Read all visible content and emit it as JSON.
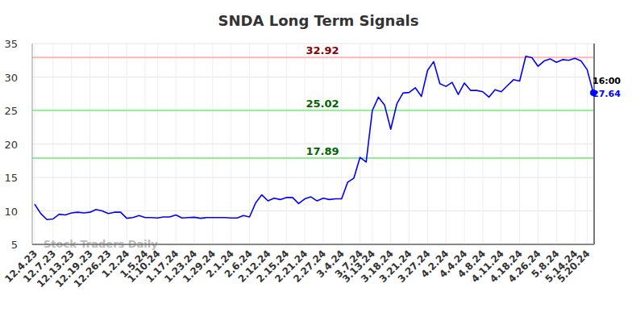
{
  "chart_data": {
    "type": "line",
    "title": "SNDA Long Term Signals",
    "categories": [
      "12.4.23",
      null,
      null,
      "12.7.23",
      null,
      null,
      "12.13.23",
      null,
      null,
      "12.19.23",
      null,
      null,
      "12.26.23",
      null,
      null,
      "1.2.24",
      null,
      null,
      "1.5.24",
      null,
      "1.10.24",
      null,
      null,
      "1.17.24",
      null,
      null,
      "1.23.24",
      null,
      null,
      "1.29.24",
      null,
      null,
      "2.1.24",
      null,
      null,
      "2.6.24",
      null,
      null,
      "2.12.24",
      null,
      null,
      "2.15.24",
      null,
      null,
      "2.21.24",
      null,
      null,
      "2.27.24",
      null,
      null,
      "3.4.24",
      null,
      null,
      "3.7.24",
      null,
      "3.13.24",
      null,
      null,
      "3.18.24",
      null,
      null,
      "3.21.24",
      null,
      null,
      "3.27.24",
      null,
      null,
      "4.2.24",
      null,
      null,
      "4.4.24",
      null,
      null,
      "4.8.24",
      null,
      null,
      "4.11.24",
      null,
      null,
      "4.18.24",
      null,
      null,
      "4.26.24",
      null,
      null,
      "5.8.24",
      null,
      null,
      "5.14.24",
      null,
      "5.20.24",
      null
    ],
    "series": [
      {
        "name": "SNDA",
        "color": "#0000ff",
        "values": [
          11.0,
          9.6,
          8.7,
          8.8,
          9.5,
          9.4,
          9.7,
          9.8,
          9.7,
          9.8,
          10.2,
          10.0,
          9.6,
          9.8,
          9.8,
          8.9,
          9.0,
          9.3,
          9.0,
          9.0,
          8.95,
          9.1,
          9.1,
          9.4,
          8.95,
          9.0,
          9.05,
          8.9,
          9.0,
          9.0,
          9.0,
          9.0,
          8.95,
          8.95,
          9.3,
          9.1,
          11.2,
          12.4,
          11.5,
          11.9,
          11.7,
          12.0,
          12.0,
          11.1,
          11.8,
          12.1,
          11.5,
          11.9,
          11.7,
          11.8,
          11.8,
          14.3,
          14.9,
          18.0,
          17.3,
          25.0,
          27.0,
          25.8,
          22.2,
          26.0,
          27.6,
          27.7,
          28.4,
          27.1,
          31.0,
          32.3,
          29.0,
          28.6,
          29.2,
          27.4,
          29.1,
          28.0,
          28.0,
          27.8,
          27.0,
          28.1,
          27.8,
          28.7,
          29.6,
          29.4,
          33.1,
          32.9,
          31.6,
          32.4,
          32.7,
          32.2,
          32.6,
          32.5,
          32.8,
          32.4,
          31.1,
          27.64
        ]
      }
    ],
    "reference_lines": [
      {
        "value": 32.92,
        "color": "#ffb6b6",
        "label_color": "#8b0000"
      },
      {
        "value": 25.02,
        "color": "#90ee90",
        "label_color": "#006400"
      },
      {
        "value": 17.89,
        "color": "#90ee90",
        "label_color": "#006400"
      }
    ],
    "annotations": [
      {
        "text": "16:00"
      }
    ],
    "watermark": "Stock Traders Daily",
    "ylim": [
      5,
      35
    ],
    "yticks": [
      5,
      10,
      15,
      20,
      25,
      30,
      35
    ],
    "grid": true
  }
}
